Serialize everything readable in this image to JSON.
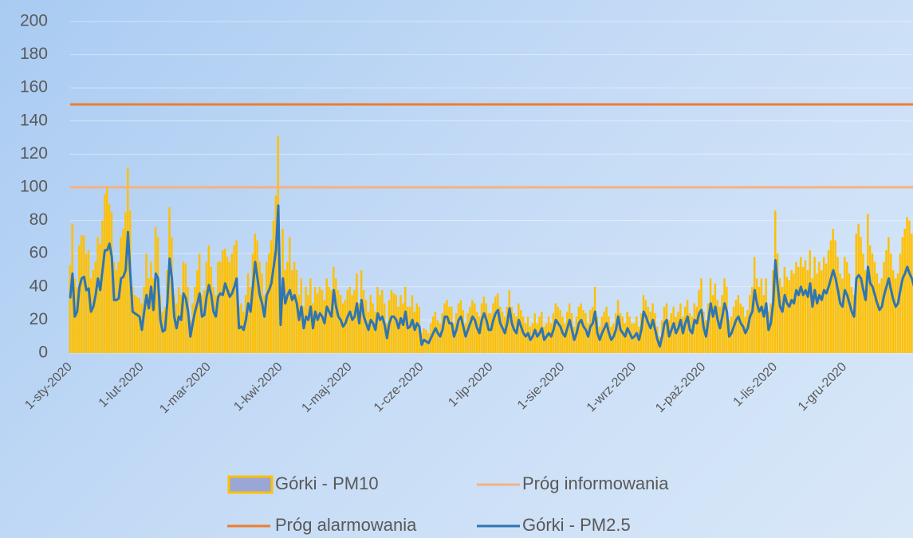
{
  "chart_data": {
    "type": "bar",
    "categories": [
      "1-sty-2020",
      null,
      null,
      null,
      null,
      null,
      null,
      null,
      null,
      null,
      null,
      null,
      null,
      null,
      null,
      null,
      null,
      null,
      null,
      null,
      null,
      null,
      null,
      null,
      null,
      null,
      null,
      null,
      null,
      null,
      null,
      "1-lut-2020",
      null,
      null,
      null,
      null,
      null,
      null,
      null,
      null,
      null,
      null,
      null,
      null,
      null,
      null,
      null,
      null,
      null,
      null,
      null,
      null,
      null,
      null,
      null,
      null,
      null,
      null,
      null,
      null,
      "1-mar-2020",
      null,
      null,
      null,
      null,
      null,
      null,
      null,
      null,
      null,
      null,
      null,
      null,
      null,
      null,
      null,
      null,
      null,
      null,
      null,
      null,
      null,
      null,
      null,
      null,
      null,
      null,
      null,
      null,
      null,
      null,
      "1-kwi-2020",
      null,
      null,
      null,
      null,
      null,
      null,
      null,
      null,
      null,
      null,
      null,
      null,
      null,
      null,
      null,
      null,
      null,
      null,
      null,
      null,
      null,
      null,
      null,
      null,
      null,
      null,
      null,
      null,
      null,
      "1-maj-2020",
      null,
      null,
      null,
      null,
      null,
      null,
      null,
      null,
      null,
      null,
      null,
      null,
      null,
      null,
      null,
      null,
      null,
      null,
      null,
      null,
      null,
      null,
      null,
      null,
      null,
      null,
      null,
      null,
      null,
      null,
      "1-cze-2020",
      null,
      null,
      null,
      null,
      null,
      null,
      null,
      null,
      null,
      null,
      null,
      null,
      null,
      null,
      null,
      null,
      null,
      null,
      null,
      null,
      null,
      null,
      null,
      null,
      null,
      null,
      null,
      null,
      null,
      "1-lip-2020",
      null,
      null,
      null,
      null,
      null,
      null,
      null,
      null,
      null,
      null,
      null,
      null,
      null,
      null,
      null,
      null,
      null,
      null,
      null,
      null,
      null,
      null,
      null,
      null,
      null,
      null,
      null,
      null,
      null,
      null,
      "1-sie-2020",
      null,
      null,
      null,
      null,
      null,
      null,
      null,
      null,
      null,
      null,
      null,
      null,
      null,
      null,
      null,
      null,
      null,
      null,
      null,
      null,
      null,
      null,
      null,
      null,
      null,
      null,
      null,
      null,
      null,
      null,
      "1-wrz-2020",
      null,
      null,
      null,
      null,
      null,
      null,
      null,
      null,
      null,
      null,
      null,
      null,
      null,
      null,
      null,
      null,
      null,
      null,
      null,
      null,
      null,
      null,
      null,
      null,
      null,
      null,
      null,
      null,
      null,
      "1-paź-2020",
      null,
      null,
      null,
      null,
      null,
      null,
      null,
      null,
      null,
      null,
      null,
      null,
      null,
      null,
      null,
      null,
      null,
      null,
      null,
      null,
      null,
      null,
      null,
      null,
      null,
      null,
      null,
      null,
      null,
      null,
      "1-lis-2020",
      null,
      null,
      null,
      null,
      null,
      null,
      null,
      null,
      null,
      null,
      null,
      null,
      null,
      null,
      null,
      null,
      null,
      null,
      null,
      null,
      null,
      null,
      null,
      null,
      null,
      null,
      null,
      null,
      null,
      "1-gru-2020",
      null,
      null,
      null,
      null,
      null,
      null,
      null,
      null,
      null,
      null,
      null,
      null,
      null,
      null,
      null,
      null,
      null,
      null,
      null,
      null,
      null,
      null,
      null,
      null,
      null,
      null,
      null,
      null,
      null,
      null
    ],
    "series": [
      {
        "name": "Górki - PM10",
        "type": "bar",
        "color": "#ffc000",
        "values": [
          53,
          78,
          45,
          40,
          65,
          71,
          71,
          60,
          62,
          45,
          50,
          55,
          70,
          66,
          80,
          96,
          100,
          90,
          85,
          55,
          50,
          55,
          70,
          75,
          85,
          112,
          86,
          40,
          35,
          34,
          33,
          30,
          40,
          60,
          45,
          55,
          45,
          76,
          70,
          35,
          25,
          28,
          50,
          88,
          70,
          35,
          30,
          40,
          35,
          55,
          54,
          40,
          20,
          30,
          40,
          50,
          60,
          35,
          38,
          55,
          65,
          52,
          40,
          35,
          55,
          55,
          62,
          63,
          58,
          55,
          60,
          65,
          68,
          28,
          30,
          25,
          35,
          48,
          40,
          60,
          72,
          68,
          55,
          48,
          35,
          55,
          60,
          68,
          80,
          95,
          131,
          35,
          75,
          50,
          55,
          70,
          50,
          55,
          50,
          35,
          45,
          28,
          40,
          35,
          45,
          30,
          40,
          36,
          40,
          38,
          32,
          45,
          40,
          38,
          52,
          45,
          38,
          35,
          30,
          32,
          38,
          40,
          35,
          38,
          48,
          30,
          50,
          38,
          32,
          25,
          35,
          30,
          25,
          40,
          35,
          38,
          30,
          18,
          32,
          38,
          36,
          35,
          28,
          35,
          30,
          40,
          28,
          28,
          35,
          25,
          30,
          28,
          12,
          15,
          14,
          12,
          18,
          22,
          25,
          20,
          18,
          24,
          30,
          32,
          28,
          28,
          18,
          24,
          30,
          32,
          26,
          18,
          24,
          28,
          32,
          30,
          25,
          22,
          30,
          34,
          30,
          24,
          24,
          30,
          34,
          36,
          28,
          25,
          22,
          28,
          38,
          28,
          24,
          22,
          30,
          26,
          22,
          18,
          22,
          16,
          18,
          24,
          18,
          22,
          25,
          16,
          18,
          22,
          18,
          24,
          30,
          28,
          26,
          22,
          18,
          25,
          30,
          24,
          16,
          22,
          28,
          30,
          26,
          24,
          18,
          26,
          28,
          40,
          22,
          16,
          22,
          25,
          28,
          22,
          16,
          18,
          24,
          32,
          24,
          22,
          18,
          25,
          22,
          18,
          18,
          22,
          16,
          24,
          35,
          32,
          28,
          25,
          30,
          24,
          16,
          10,
          20,
          28,
          30,
          20,
          24,
          28,
          22,
          25,
          30,
          22,
          28,
          32,
          24,
          22,
          30,
          28,
          38,
          45,
          25,
          20,
          30,
          45,
          35,
          42,
          32,
          28,
          35,
          45,
          40,
          20,
          22,
          28,
          32,
          35,
          30,
          28,
          22,
          26,
          35,
          40,
          58,
          45,
          40,
          45,
          35,
          45,
          25,
          30,
          50,
          86,
          60,
          45,
          40,
          52,
          46,
          44,
          50,
          48,
          55,
          52,
          58,
          52,
          56,
          50,
          62,
          45,
          58,
          48,
          55,
          50,
          58,
          54,
          62,
          68,
          75,
          68,
          58,
          48,
          45,
          58,
          55,
          48,
          40,
          35,
          72,
          78,
          70,
          60,
          50,
          84,
          65,
          60,
          55,
          48,
          42,
          45,
          55,
          62,
          70,
          60,
          50,
          45,
          48,
          60,
          70,
          75,
          82,
          80,
          72,
          65
        ]
      },
      {
        "name": "Górki - PM2.5",
        "type": "line",
        "color": "#2e75b6",
        "values": [
          33,
          48,
          22,
          25,
          40,
          45,
          46,
          38,
          39,
          25,
          28,
          35,
          45,
          38,
          50,
          62,
          62,
          66,
          58,
          32,
          32,
          33,
          45,
          46,
          50,
          73,
          48,
          25,
          24,
          23,
          22,
          14,
          25,
          35,
          27,
          40,
          26,
          48,
          45,
          20,
          13,
          14,
          30,
          57,
          45,
          22,
          15,
          22,
          20,
          36,
          33,
          25,
          10,
          18,
          25,
          30,
          36,
          22,
          23,
          34,
          41,
          35,
          25,
          22,
          34,
          36,
          35,
          42,
          38,
          34,
          36,
          40,
          45,
          15,
          16,
          14,
          20,
          30,
          25,
          40,
          55,
          45,
          35,
          30,
          22,
          35,
          38,
          42,
          52,
          62,
          89,
          17,
          45,
          30,
          35,
          38,
          32,
          35,
          30,
          20,
          28,
          15,
          22,
          20,
          28,
          15,
          25,
          20,
          24,
          22,
          18,
          28,
          25,
          22,
          38,
          28,
          22,
          20,
          16,
          18,
          22,
          25,
          20,
          22,
          30,
          18,
          32,
          22,
          18,
          14,
          20,
          18,
          14,
          24,
          20,
          22,
          17,
          9,
          18,
          22,
          22,
          20,
          15,
          21,
          17,
          25,
          15,
          16,
          20,
          14,
          18,
          16,
          5,
          8,
          7,
          6,
          9,
          12,
          15,
          12,
          10,
          14,
          22,
          22,
          18,
          18,
          10,
          14,
          20,
          22,
          16,
          10,
          14,
          18,
          22,
          20,
          15,
          12,
          20,
          24,
          20,
          14,
          14,
          20,
          24,
          26,
          18,
          15,
          12,
          18,
          27,
          18,
          14,
          12,
          20,
          16,
          12,
          10,
          12,
          8,
          10,
          14,
          10,
          12,
          15,
          8,
          10,
          12,
          10,
          14,
          20,
          18,
          16,
          12,
          10,
          15,
          20,
          14,
          8,
          12,
          18,
          20,
          16,
          14,
          10,
          16,
          18,
          25,
          12,
          8,
          12,
          15,
          18,
          12,
          8,
          10,
          14,
          22,
          14,
          12,
          10,
          15,
          12,
          9,
          10,
          12,
          8,
          14,
          25,
          22,
          18,
          15,
          20,
          14,
          8,
          4,
          10,
          18,
          20,
          10,
          14,
          18,
          12,
          15,
          20,
          12,
          18,
          22,
          14,
          12,
          20,
          18,
          24,
          26,
          15,
          10,
          20,
          30,
          22,
          28,
          20,
          15,
          22,
          30,
          25,
          10,
          12,
          16,
          20,
          22,
          18,
          16,
          12,
          15,
          22,
          25,
          38,
          30,
          25,
          28,
          22,
          30,
          14,
          18,
          30,
          56,
          40,
          28,
          25,
          35,
          30,
          28,
          32,
          30,
          38,
          35,
          40,
          35,
          38,
          34,
          42,
          28,
          38,
          30,
          35,
          32,
          38,
          36,
          40,
          45,
          50,
          45,
          38,
          30,
          28,
          38,
          35,
          30,
          25,
          22,
          45,
          47,
          45,
          38,
          32,
          52,
          42,
          40,
          35,
          30,
          26,
          28,
          35,
          40,
          45,
          38,
          32,
          28,
          30,
          38,
          45,
          48,
          52,
          48,
          45,
          40
        ]
      }
    ],
    "reference_lines": [
      {
        "name": "Próg informowania",
        "color": "#f4b183",
        "value": 100
      },
      {
        "name": "Próg alarmowania",
        "color": "#ed7d31",
        "value": 150
      }
    ],
    "ylim": [
      0,
      200
    ],
    "yticks": [
      0,
      20,
      40,
      60,
      80,
      100,
      120,
      140,
      160,
      180,
      200
    ],
    "grid": true
  }
}
